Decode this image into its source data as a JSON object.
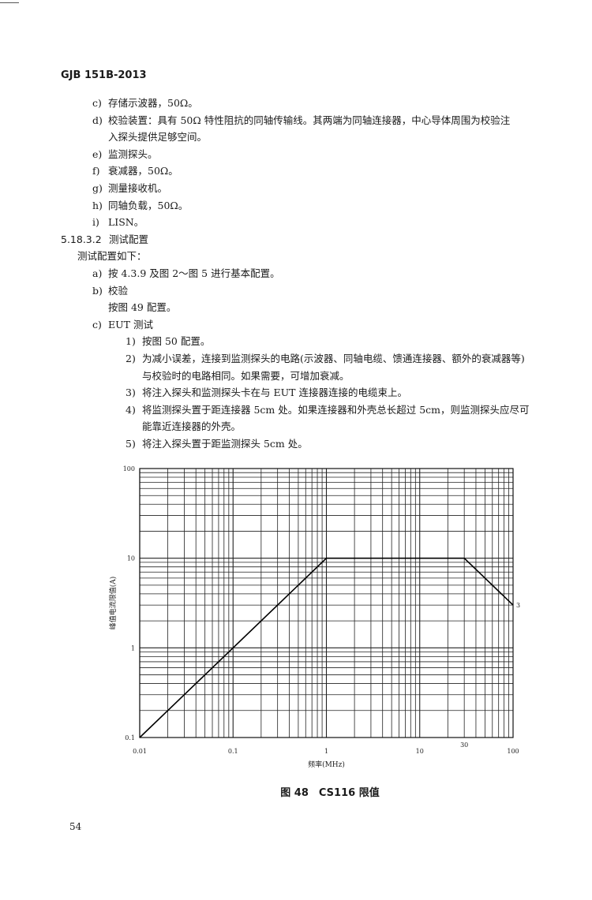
{
  "header": {
    "doc_id": "GJB 151B-2013"
  },
  "list1": [
    {
      "label": "c)",
      "text": [
        "存储示波器，50Ω。"
      ]
    },
    {
      "label": "d)",
      "text": [
        "校验装置：具有 50Ω 特性阻抗的同轴传输线。其两端为同轴连接器，中心导体周围为校验注",
        "入探头提供足够空间。"
      ]
    },
    {
      "label": "e)",
      "text": [
        "监测探头。"
      ]
    },
    {
      "label": "f)",
      "text": [
        "衰减器，50Ω。"
      ]
    },
    {
      "label": "g)",
      "text": [
        "测量接收机。"
      ]
    },
    {
      "label": "h)",
      "text": [
        "同轴负载，50Ω。"
      ]
    },
    {
      "label": "i)",
      "text": [
        "LISN。"
      ]
    }
  ],
  "section": {
    "number": "5.18.3.2",
    "title": "测试配置",
    "intro": "测试配置如下："
  },
  "list2": [
    {
      "label": "a)",
      "text": [
        "按 4.3.9 及图 2～图 5 进行基本配置。"
      ]
    },
    {
      "label": "b)",
      "text": [
        "校验",
        "按图 49 配置。"
      ]
    },
    {
      "label": "c)",
      "text": [
        "EUT 测试"
      ]
    }
  ],
  "sublist": [
    {
      "label": "1)",
      "text": [
        "按图 50 配置。"
      ]
    },
    {
      "label": "2)",
      "text": [
        "为减小误差，连接到监测探头的电路(示波器、同轴电缆、馈通连接器、额外的衰减器等)",
        "与校验时的电路相同。如果需要，可增加衰减。"
      ]
    },
    {
      "label": "3)",
      "text": [
        "将注入探头和监测探头卡在与 EUT 连接器连接的电缆束上。"
      ]
    },
    {
      "label": "4)",
      "text": [
        "将监测探头置于距连接器 5cm 处。如果连接器和外壳总长超过 5cm，则监测探头应尽可",
        "能靠近连接器的外壳。"
      ]
    },
    {
      "label": "5)",
      "text": [
        "将注入探头置于距监测探头 5cm 处。"
      ]
    }
  ],
  "chart_data": {
    "type": "line",
    "title": "",
    "xlabel": "频率(MHz)",
    "ylabel": "峰值电流限值(A)",
    "x_scale": "log",
    "y_scale": "log",
    "xlim": [
      0.01,
      100
    ],
    "ylim": [
      0.1,
      100
    ],
    "x_ticks": [
      "0.01",
      "0.1",
      "1",
      "10",
      "100"
    ],
    "y_ticks": [
      "0.1",
      "1",
      "10",
      "100"
    ],
    "grid": true,
    "series": [
      {
        "x": [
          0.01,
          1,
          30,
          100
        ],
        "y": [
          0.1,
          10,
          10,
          3
        ]
      }
    ],
    "annotations": [
      {
        "text": "30",
        "x": 30
      },
      {
        "text": "3",
        "y": 3
      }
    ]
  },
  "caption": "图 48　CS116 限值",
  "page_number": "54"
}
